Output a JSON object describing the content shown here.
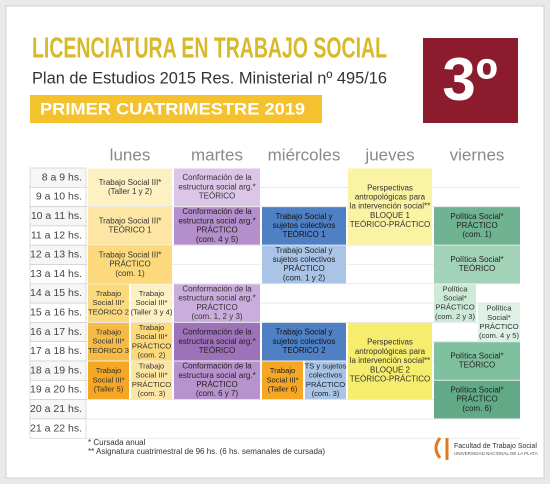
{
  "header": {
    "title": "LICENCIATURA EN TRABAJO SOCIAL",
    "subtitle": "Plan de Estudios 2015 Res. Ministerial nº 495/16",
    "term": "PRIMER CUATRIMESTRE 2019",
    "year_badge": "3º"
  },
  "days": [
    "lunes",
    "martes",
    "miércoles",
    "jueves",
    "viernes"
  ],
  "times": [
    "8 a 9 hs.",
    "9 a 10 hs.",
    "10 a 11 hs.",
    "11 a 12 hs.",
    "12 a 13 hs.",
    "13 a 14 hs.",
    "14 a 15 hs.",
    "15 a 16 hs.",
    "16 a 17 hs.",
    "17 a 18 hs.",
    "18 a 19 hs.",
    "19 a 20 hs.",
    "20 a 21 hs.",
    "21 a 22 hs."
  ],
  "blocks": [
    {
      "lines": [
        "Trabajo Social III*",
        "(Taller 1 y 2)"
      ]
    },
    {
      "lines": [
        "Trabajo Social III*",
        "TEÓRICO 1"
      ]
    },
    {
      "lines": [
        "Trabajo Social III*",
        "PRÁCTICO",
        "(com. 1)"
      ]
    },
    {
      "lines": [
        "Trabajo",
        "Social III*",
        "TEÓRICO 2"
      ]
    },
    {
      "lines": [
        "Trabajo",
        "Social III*",
        "(Taller 3 y 4)"
      ]
    },
    {
      "lines": [
        "Trabajo",
        "Social III*",
        "TEÓRICO 3"
      ]
    },
    {
      "lines": [
        "Trabajo",
        "Social III*",
        "PRÁCTICO",
        "(com. 2)"
      ]
    },
    {
      "lines": [
        "Trabajo",
        "Social III*",
        "(Taller 5)"
      ]
    },
    {
      "lines": [
        "Trabajo",
        "Social III*",
        "PRÁCTICO",
        "(com. 3)"
      ]
    },
    {
      "lines": [
        "Conformación de la",
        "estructura social arg.*",
        "TEÓRICO"
      ]
    },
    {
      "lines": [
        "Conformación de la",
        "estructura social arg.*",
        "PRÁCTICO",
        "(com. 4 y 5)"
      ]
    },
    {
      "lines": [
        "Conformación de la",
        "estructura social arg.*",
        "PRÁCTICO",
        "(com. 1, 2 y 3)"
      ]
    },
    {
      "lines": [
        "Conformación de la",
        "estructura social arg.*",
        "TEÓRICO"
      ]
    },
    {
      "lines": [
        "Conformación de la",
        "estructura social arg.*",
        "PRÁCTICO",
        "(com. 6 y 7)"
      ]
    },
    {
      "lines": [
        "Trabajo Social y",
        "sujetos colectivos",
        "TEÓRICO 1"
      ]
    },
    {
      "lines": [
        "Trabajo Social y",
        "sujetos colectivos",
        "PRÁCTICO",
        "(com. 1 y 2)"
      ]
    },
    {
      "lines": [
        "Trabajo Social y",
        "sujetos colectivos",
        "TEÓRICO 2"
      ]
    },
    {
      "lines": [
        "Trabajo",
        "Social III*",
        "(Taller 6)"
      ]
    },
    {
      "lines": [
        "TS y sujetos",
        "colectivos",
        "PRÁCTICO",
        "(com. 3)"
      ]
    },
    {
      "lines": [
        "Perspectivas",
        "antropológicas para",
        "la intervención social**",
        "BLOQUE 1",
        "TEÓRICO-PRÁCTICO"
      ]
    },
    {
      "lines": [
        "Perspectivas",
        "antropológicas para",
        "la intervención social**",
        "BLOQUE 2",
        "TEÓRICO-PRÁCTICO"
      ]
    },
    {
      "lines": [
        "Política Social*",
        "PRÁCTICO",
        "(com. 1)"
      ]
    },
    {
      "lines": [
        "Política Social*",
        "TEÓRICO"
      ]
    },
    {
      "lines": [
        "Política",
        "Social*",
        "PRÁCTICO",
        "(com. 2 y 3)"
      ]
    },
    {
      "lines": [
        "Política",
        "Social*",
        "PRÁCTICO",
        "(com. 4 y 5)"
      ]
    },
    {
      "lines": [
        "Política Social*",
        "TEÓRICO"
      ]
    },
    {
      "lines": [
        "Política Social*",
        "PRÁCTICO",
        "(com. 6)"
      ]
    }
  ],
  "footnotes": [
    "* Cursada anual",
    "** Asignatura cuatrimestral de 96 hs. (6 hs. semanales de cursada)"
  ],
  "logo": {
    "name": "Facultad de Trabajo Social",
    "university": "UNIVERSIDAD NACIONAL DE LA PLATA"
  }
}
